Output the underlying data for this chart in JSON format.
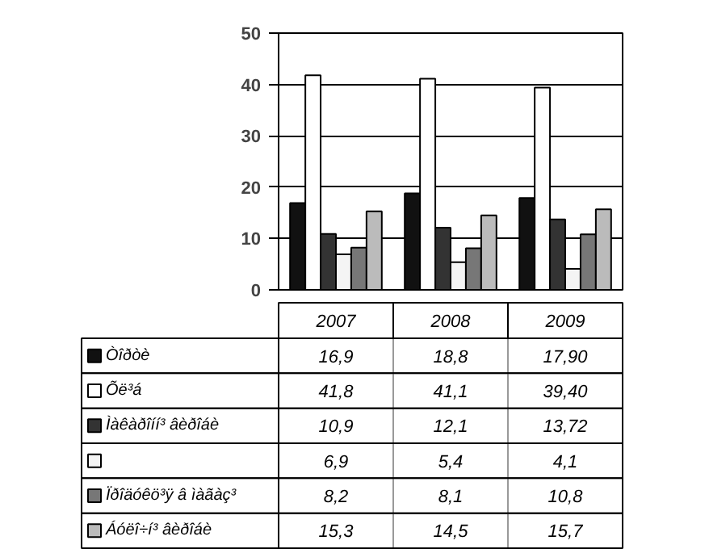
{
  "chart_data": {
    "type": "bar",
    "categories": [
      "2007",
      "2008",
      "2009"
    ],
    "ylim": [
      0,
      50
    ],
    "yticks": [
      0,
      10,
      20,
      30,
      40,
      50
    ],
    "grid": "y",
    "legend": "bottom left",
    "data_labels": true,
    "series": [
      {
        "name": "Òîðòè",
        "color": "#111111",
        "values": [
          16.9,
          18.8,
          17.9
        ],
        "value_labels": [
          "16,9",
          "18,8",
          "17,90"
        ]
      },
      {
        "name": "Õë³á",
        "color": "#ffffff",
        "values": [
          41.8,
          41.1,
          39.4
        ],
        "value_labels": [
          "41,8",
          "41,1",
          "39,40"
        ]
      },
      {
        "name": "Ìàêàðîíí³ âèðîáè",
        "color": "#333333",
        "values": [
          10.9,
          12.1,
          13.72
        ],
        "value_labels": [
          "10,9",
          "12,1",
          "13,72"
        ]
      },
      {
        "color": "#f4f4f4",
        "values": [
          6.9,
          5.4,
          4.1
        ],
        "value_labels": [
          "6,9",
          "5,4",
          "4,1"
        ]
      },
      {
        "name": "Ïðîäóêö³ÿ â ìàãàç³",
        "color": "#777777",
        "values": [
          8.2,
          8.1,
          10.8
        ],
        "value_labels": [
          "8,2",
          "8,1",
          "10,8"
        ]
      },
      {
        "name": "Áóëî÷í³ âèðîáè",
        "color": "#bbbbbb",
        "values": [
          15.3,
          14.5,
          15.7
        ],
        "value_labels": [
          "15,3",
          "14,5",
          "15,7"
        ]
      }
    ]
  }
}
